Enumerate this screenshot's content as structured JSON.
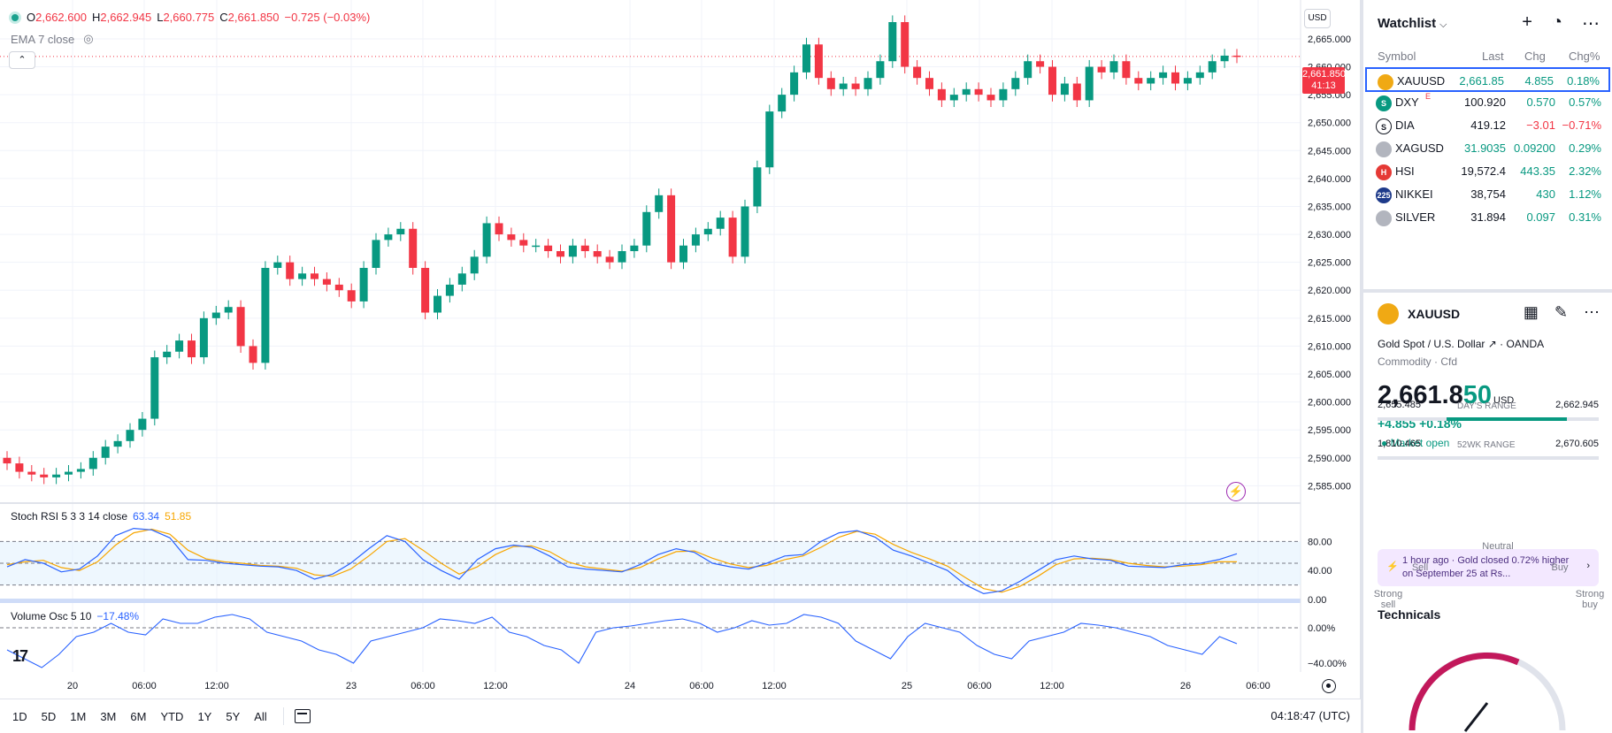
{
  "legend": {
    "o_label": "O",
    "o_value": "2,662.600",
    "h_label": "H",
    "h_value": "2,662.945",
    "l_label": "L",
    "l_value": "2,660.775",
    "c_label": "C",
    "c_value": "2,661.850",
    "change": "−0.725 (−0.03%)"
  },
  "ema_label": "EMA 7 close",
  "currency_button": "USD",
  "price_tag": {
    "price": "2,661.850",
    "countdown": "41:13"
  },
  "price_axis": [
    "2,665.000",
    "2,660.000",
    "2,655.000",
    "2,650.000",
    "2,645.000",
    "2,640.000",
    "2,635.000",
    "2,630.000",
    "2,625.000",
    "2,620.000",
    "2,615.000",
    "2,610.000",
    "2,605.000",
    "2,600.000",
    "2,595.000",
    "2,590.000",
    "2,585.000"
  ],
  "stoch_rsi": {
    "label": "Stoch RSI 5 3 3 14 close",
    "k_value": "63.34",
    "d_value": "51.85",
    "axis": [
      "80.00",
      "40.00",
      "0.00"
    ]
  },
  "volume_osc": {
    "label": "Volume Osc 5 10",
    "value": "−17.48%",
    "axis": [
      "0.00%",
      "−40.00%"
    ]
  },
  "time_axis": [
    "20",
    "06:00",
    "12:00",
    "23",
    "06:00",
    "12:00",
    "24",
    "06:00",
    "12:00",
    "25",
    "06:00",
    "12:00",
    "26",
    "06:00"
  ],
  "range_buttons": [
    "1D",
    "5D",
    "1M",
    "3M",
    "6M",
    "YTD",
    "1Y",
    "5Y",
    "All"
  ],
  "clock": "04:18:47 (UTC)",
  "watchlist": {
    "title": "Watchlist",
    "columns": {
      "symbol": "Symbol",
      "last": "Last",
      "chg": "Chg",
      "chgp": "Chg%"
    },
    "rows": [
      {
        "symbol": "XAUUSD",
        "last": "2,661.85",
        "chg": "4.855",
        "chgp": "0.18%",
        "logo_color": "#f0a914",
        "logo_text": "",
        "last_color": "#089981"
      },
      {
        "symbol": "DXY",
        "last": "100.920",
        "chg": "0.570",
        "chgp": "0.57%",
        "logo_color": "#089981",
        "logo_text": "S",
        "last_color": "#131722"
      },
      {
        "symbol": "DIA",
        "last": "419.12",
        "chg": "−3.01",
        "chgp": "−0.71%",
        "logo_color": "#ffffff",
        "logo_text": "S",
        "last_color": "#131722"
      },
      {
        "symbol": "XAGUSD",
        "last": "31.9035",
        "chg": "0.09200",
        "chgp": "0.29%",
        "logo_color": "#b2b5be",
        "logo_text": "",
        "last_color": "#089981"
      },
      {
        "symbol": "HSI",
        "last": "19,572.4",
        "chg": "443.35",
        "chgp": "2.32%",
        "logo_color": "#e53935",
        "logo_text": "H",
        "last_color": "#131722"
      },
      {
        "symbol": "NIKKEI",
        "last": "38,754",
        "chg": "430",
        "chgp": "1.12%",
        "logo_color": "#1e3a8a",
        "logo_text": "225",
        "last_color": "#131722"
      },
      {
        "symbol": "SILVER",
        "last": "31.894",
        "chg": "0.097",
        "chgp": "0.31%",
        "logo_color": "#b2b5be",
        "logo_text": "",
        "last_color": "#131722"
      }
    ],
    "dxy_badge": "E"
  },
  "detail": {
    "symbol": "XAUUSD",
    "name": "Gold Spot / U.S. Dollar",
    "broker": "OANDA",
    "type": "Commodity · Cfd",
    "price_main": "2,661.8",
    "price_tail": "50",
    "currency": "USD",
    "change": "+4.855",
    "change_pct": "+0.18%",
    "market_status": "Market open",
    "days_range": {
      "label": "DAY'S RANGE",
      "low": "2,655.485",
      "high": "2,662.945"
    },
    "week52_range": {
      "label": "52WK RANGE",
      "low": "1,810.465",
      "high": "2,670.605"
    },
    "news": "1 hour ago · Gold closed 0.72% higher on September 25 at Rs...",
    "technicals": "Technicals",
    "gauge": {
      "neutral": "Neutral",
      "sell": "Sell",
      "buy": "Buy",
      "strong_sell": "Strong sell",
      "strong_buy": "Strong buy"
    }
  },
  "colors": {
    "up": "#089981",
    "down": "#f23645",
    "k_line": "#2962ff",
    "d_line": "#f7a600"
  }
}
